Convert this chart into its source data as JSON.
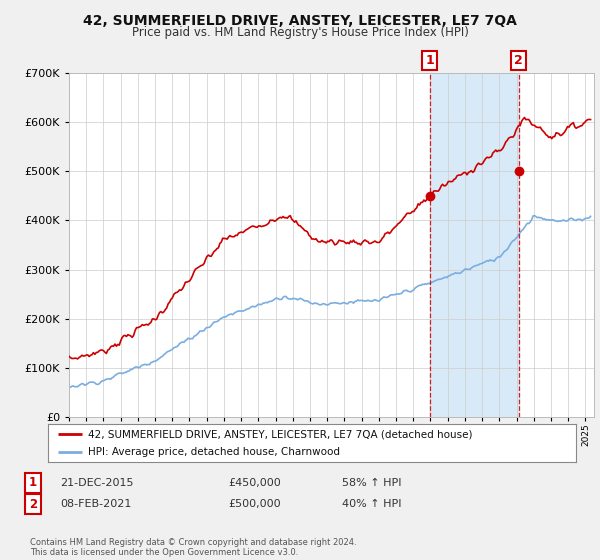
{
  "title": "42, SUMMERFIELD DRIVE, ANSTEY, LEICESTER, LE7 7QA",
  "subtitle": "Price paid vs. HM Land Registry's House Price Index (HPI)",
  "legend_line1": "42, SUMMERFIELD DRIVE, ANSTEY, LEICESTER, LE7 7QA (detached house)",
  "legend_line2": "HPI: Average price, detached house, Charnwood",
  "sale1_date": "21-DEC-2015",
  "sale1_price": "£450,000",
  "sale1_hpi": "58% ↑ HPI",
  "sale1_year": 2015.97,
  "sale1_value": 450000,
  "sale2_date": "08-FEB-2021",
  "sale2_price": "£500,000",
  "sale2_hpi": "40% ↑ HPI",
  "sale2_year": 2021.12,
  "sale2_value": 500000,
  "footer": "Contains HM Land Registry data © Crown copyright and database right 2024.\nThis data is licensed under the Open Government Licence v3.0.",
  "red_color": "#cc0000",
  "blue_color": "#7aade0",
  "background_color": "#f0f0f0",
  "plot_bg_color": "#ffffff",
  "shade_color": "#d8eaf8",
  "ylim": [
    0,
    700000
  ],
  "xlim_start": 1995.0,
  "xlim_end": 2025.5
}
